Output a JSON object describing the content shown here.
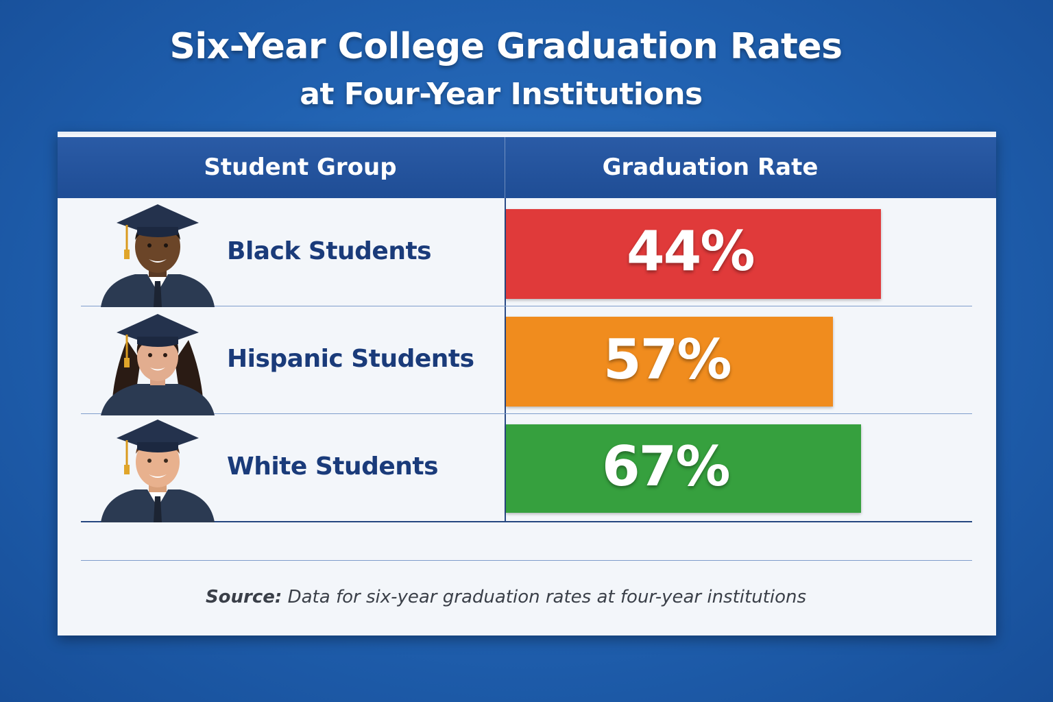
{
  "title": "Six-Year College Graduation Rates",
  "subtitle": "at Four-Year Institutions",
  "table": {
    "col_group": "Student Group",
    "col_rate": "Graduation Rate"
  },
  "chart_data": {
    "type": "bar",
    "categories": [
      "Black Students",
      "Hispanic Students",
      "White Students"
    ],
    "values": [
      44,
      57,
      67
    ],
    "value_labels": [
      "44%",
      "57%",
      "67%"
    ],
    "bar_colors": [
      "#e03a3a",
      "#f08c1e",
      "#36a03e"
    ],
    "xlabel": "Graduation Rate",
    "ylabel": "Student Group"
  },
  "rows": [
    {
      "label": "Black Students",
      "value_label": "44%",
      "avatar": "male-graduate-icon"
    },
    {
      "label": "Hispanic Students",
      "value_label": "57%",
      "avatar": "female-graduate-icon"
    },
    {
      "label": "White Students",
      "value_label": "67%",
      "avatar": "male-graduate-icon"
    }
  ],
  "source": {
    "prefix": "Source:",
    "text": " Data for six-year graduation rates at four-year institutions"
  }
}
